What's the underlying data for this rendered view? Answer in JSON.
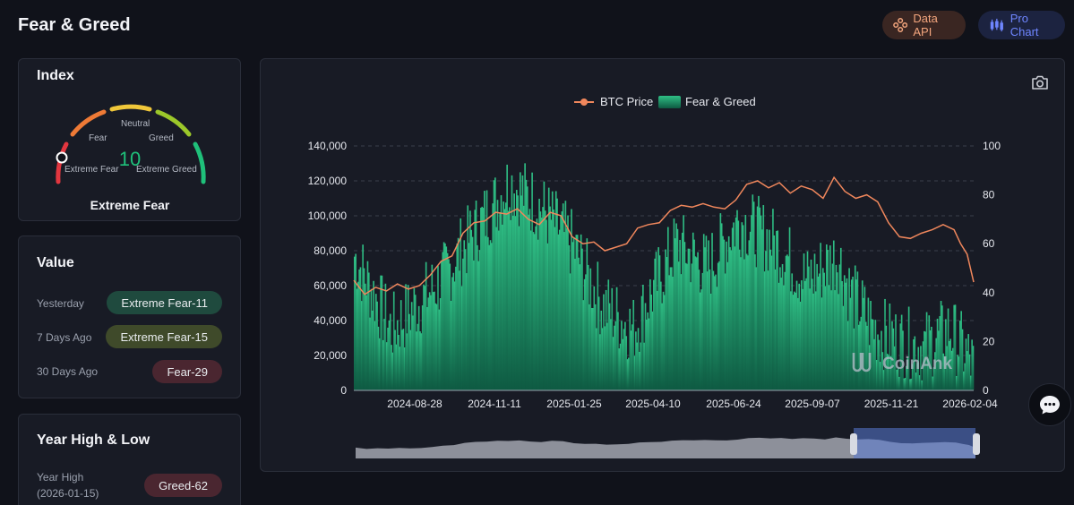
{
  "header": {
    "title": "Fear & Greed",
    "data_api_label": "Data API",
    "pro_chart_label": "Pro Chart"
  },
  "index_card": {
    "title": "Index",
    "value": "10",
    "status": "Extreme Fear",
    "gauge_labels": {
      "extreme_fear": "Extreme Fear",
      "fear": "Fear",
      "neutral": "Neutral",
      "greed": "Greed",
      "extreme_greed": "Extreme Greed"
    },
    "gauge_value": 10,
    "colors": {
      "value": "#1fc07a"
    }
  },
  "value_card": {
    "title": "Value",
    "rows": [
      {
        "label": "Yesterday",
        "value": "Extreme Fear-11",
        "color": "#1f4a3e"
      },
      {
        "label": "7 Days Ago",
        "value": "Extreme Fear-15",
        "color": "#3f4a2a"
      },
      {
        "label": "30 Days Ago",
        "value": "Fear-29",
        "color": "#4a2630"
      }
    ]
  },
  "year_card": {
    "title": "Year High & Low",
    "high_label": "Year High",
    "high_date": "(2026-01-15)",
    "high_value": "Greed-62",
    "high_color": "#4a2630"
  },
  "chart_data": {
    "type": "bar+line",
    "legend": [
      "BTC Price",
      "Fear & Greed"
    ],
    "x_ticks": [
      "2024-08-28",
      "2024-11-11",
      "2025-01-25",
      "2025-04-10",
      "2025-06-24",
      "2025-09-07",
      "2025-11-21",
      "2026-02-04"
    ],
    "y_left_ticks": [
      "0",
      "20,000",
      "40,000",
      "60,000",
      "80,000",
      "100,000",
      "120,000",
      "140,000"
    ],
    "y_right_ticks": [
      "0",
      "20",
      "40",
      "60",
      "80",
      "100"
    ],
    "ylim_left": [
      0,
      140000
    ],
    "ylim_right": [
      0,
      100
    ],
    "btc_price": [
      [
        0,
        63000
      ],
      [
        5,
        55000
      ],
      [
        10,
        59000
      ],
      [
        15,
        57000
      ],
      [
        20,
        61000
      ],
      [
        25,
        58000
      ],
      [
        30,
        60000
      ],
      [
        35,
        66000
      ],
      [
        40,
        74000
      ],
      [
        45,
        77000
      ],
      [
        50,
        90000
      ],
      [
        55,
        96000
      ],
      [
        60,
        97000
      ],
      [
        65,
        102000
      ],
      [
        70,
        101000
      ],
      [
        75,
        104000
      ],
      [
        80,
        98000
      ],
      [
        85,
        95000
      ],
      [
        90,
        102000
      ],
      [
        95,
        100000
      ],
      [
        100,
        88000
      ],
      [
        105,
        84000
      ],
      [
        110,
        85000
      ],
      [
        115,
        80000
      ],
      [
        120,
        82000
      ],
      [
        125,
        84000
      ],
      [
        130,
        93000
      ],
      [
        135,
        95000
      ],
      [
        140,
        96000
      ],
      [
        145,
        103000
      ],
      [
        150,
        106000
      ],
      [
        155,
        105000
      ],
      [
        160,
        107000
      ],
      [
        165,
        105000
      ],
      [
        170,
        104000
      ],
      [
        175,
        109000
      ],
      [
        180,
        118000
      ],
      [
        185,
        120000
      ],
      [
        190,
        116000
      ],
      [
        195,
        119000
      ],
      [
        200,
        113000
      ],
      [
        205,
        117000
      ],
      [
        210,
        115000
      ],
      [
        215,
        110000
      ],
      [
        220,
        122000
      ],
      [
        225,
        114000
      ],
      [
        230,
        110000
      ],
      [
        235,
        112000
      ],
      [
        240,
        108000
      ],
      [
        245,
        96000
      ],
      [
        250,
        88000
      ],
      [
        255,
        87000
      ],
      [
        260,
        90000
      ],
      [
        265,
        92000
      ],
      [
        270,
        95000
      ],
      [
        275,
        92000
      ],
      [
        278,
        84000
      ],
      [
        281,
        78000
      ],
      [
        284,
        62000
      ]
    ],
    "fear_greed_bars_note": "daily index values 0-100",
    "watermark": "CoinAnk"
  }
}
